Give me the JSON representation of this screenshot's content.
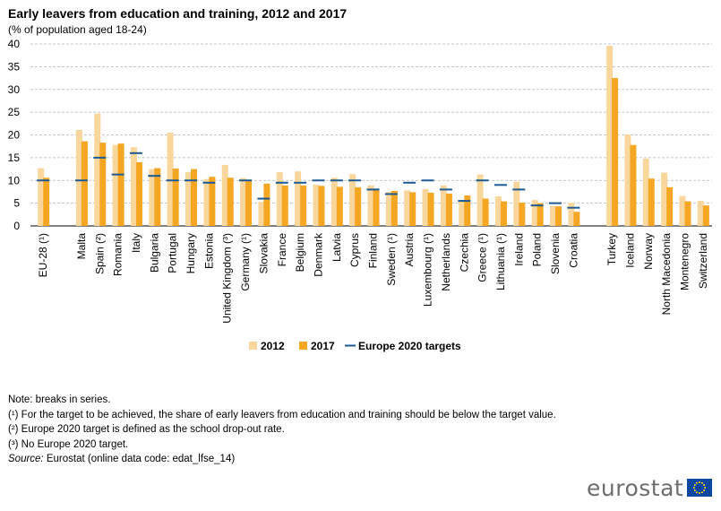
{
  "title": "Early leavers from education and training, 2012 and 2017",
  "subtitle": "(% of population  aged 18-24)",
  "notes": [
    "Note: breaks in series.",
    "(¹) For the target to be achieved, the share of early leavers from education and training should be below the target value.",
    "(²) Europe 2020 target is defined as the school drop-out rate.",
    "(³) No Europe 2020 target."
  ],
  "source_label": "Source:",
  "source_text": " Eurostat (online data code: edat_lfse_14)",
  "logo_text": "eurostat",
  "colors": {
    "y2012": "#f9d79c",
    "y2017": "#f5a623",
    "target": "#1c5a91",
    "grid": "#b4b4b4"
  },
  "chart_data": {
    "type": "bar",
    "ylim": [
      0,
      40
    ],
    "yticks": [
      0,
      5,
      10,
      15,
      20,
      25,
      30,
      35,
      40
    ],
    "legend_position": "bottom",
    "grid": true,
    "series_names": [
      "2012",
      "2017",
      "Europe 2020 targets"
    ],
    "groups": [
      {
        "categories": [
          "EU-28 (¹)"
        ],
        "v2012": [
          12.7
        ],
        "v2017": [
          10.6
        ],
        "target": [
          10
        ]
      },
      {
        "categories": [
          "Malta",
          "Spain (²)",
          "Romania",
          "Italy",
          "Bulgaria",
          "Portugal",
          "Hungary",
          "Estonia",
          "United Kingdom (³)",
          "Germany (¹)",
          "Slovakia",
          "France",
          "Belgium",
          "Denmark",
          "Latvia",
          "Cyprus",
          "Finland",
          "Sweden (¹)",
          "Austria",
          "Luxembourg (¹)",
          "Netherlands",
          "Czechia",
          "Greece (¹)",
          "Lithuania (¹)",
          "Ireland",
          "Poland",
          "Slovenia",
          "Croatia"
        ],
        "v2012": [
          21.1,
          24.7,
          17.8,
          17.3,
          12.5,
          20.5,
          11.8,
          10.3,
          13.4,
          10.5,
          5.3,
          11.8,
          12.0,
          9.1,
          10.6,
          11.4,
          8.9,
          7.5,
          7.8,
          8.1,
          8.9,
          5.5,
          11.3,
          6.5,
          9.7,
          5.7,
          4.4,
          5.1
        ],
        "v2017": [
          18.6,
          18.3,
          18.1,
          14.0,
          12.7,
          12.6,
          12.5,
          10.8,
          10.6,
          10.1,
          9.3,
          8.9,
          8.9,
          8.8,
          8.6,
          8.5,
          8.2,
          7.7,
          7.4,
          7.3,
          7.1,
          6.7,
          6.0,
          5.4,
          5.1,
          5.0,
          4.3,
          3.1
        ],
        "target": [
          10,
          15,
          11.3,
          16,
          11,
          10,
          10,
          9.5,
          null,
          10,
          6,
          9.5,
          9.5,
          10,
          10,
          10,
          8,
          7,
          9.5,
          10,
          8,
          5.5,
          10,
          9,
          8,
          4.5,
          5,
          4
        ]
      },
      {
        "categories": [
          "Turkey",
          "Iceland",
          "Norway",
          "North Macedonia",
          "Montenegro",
          "Switzerland"
        ],
        "v2012": [
          39.6,
          20.1,
          14.8,
          11.7,
          6.6,
          5.5
        ],
        "v2017": [
          32.5,
          17.8,
          10.4,
          8.5,
          5.4,
          4.5
        ],
        "target": [
          null,
          null,
          null,
          null,
          null,
          null
        ]
      }
    ]
  }
}
